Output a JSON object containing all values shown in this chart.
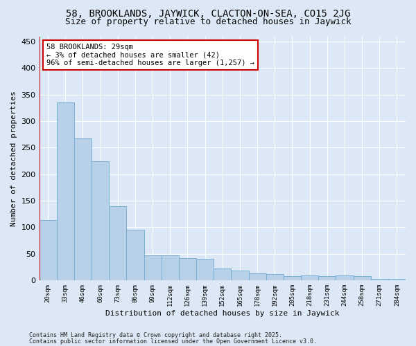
{
  "title_line1": "58, BROOKLANDS, JAYWICK, CLACTON-ON-SEA, CO15 2JG",
  "title_line2": "Size of property relative to detached houses in Jaywick",
  "xlabel": "Distribution of detached houses by size in Jaywick",
  "ylabel": "Number of detached properties",
  "categories": [
    "20sqm",
    "33sqm",
    "46sqm",
    "60sqm",
    "73sqm",
    "86sqm",
    "99sqm",
    "112sqm",
    "126sqm",
    "139sqm",
    "152sqm",
    "165sqm",
    "178sqm",
    "192sqm",
    "205sqm",
    "218sqm",
    "231sqm",
    "244sqm",
    "258sqm",
    "271sqm",
    "284sqm"
  ],
  "values": [
    113,
    335,
    268,
    224,
    140,
    95,
    47,
    47,
    42,
    40,
    22,
    18,
    13,
    11,
    8,
    9,
    8,
    9,
    8,
    2,
    2
  ],
  "bar_color": "#b8d0e8",
  "bar_edge_color": "#7aafd4",
  "marker_color": "#cc0000",
  "annotation_text": "58 BROOKLANDS: 29sqm\n← 3% of detached houses are smaller (42)\n96% of semi-detached houses are larger (1,257) →",
  "annotation_box_color": "#ffffff",
  "annotation_box_edge_color": "#cc0000",
  "ylim": [
    0,
    460
  ],
  "yticks": [
    0,
    50,
    100,
    150,
    200,
    250,
    300,
    350,
    400,
    450
  ],
  "footer_line1": "Contains HM Land Registry data © Crown copyright and database right 2025.",
  "footer_line2": "Contains public sector information licensed under the Open Government Licence v3.0.",
  "bg_color": "#dce8f5",
  "plot_bg_color": "#dce8f5"
}
